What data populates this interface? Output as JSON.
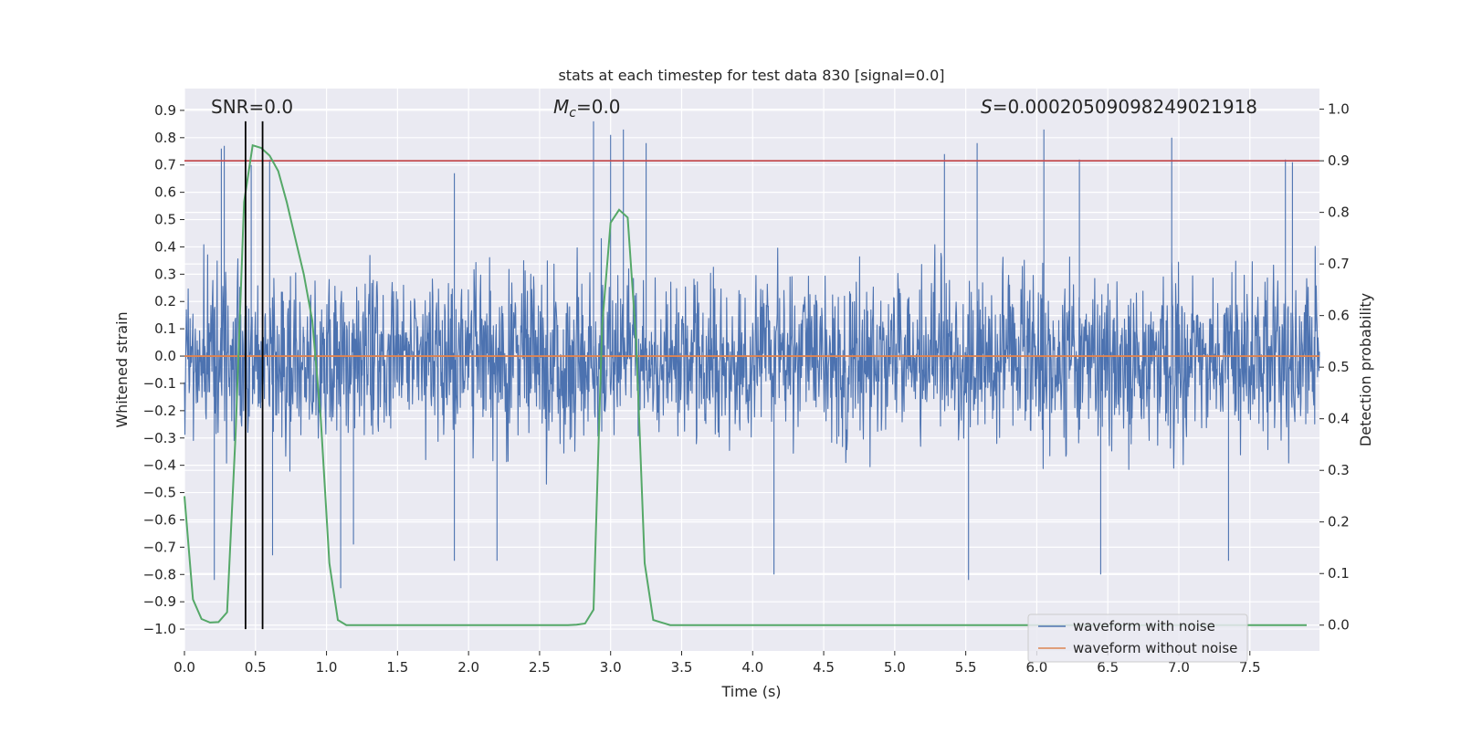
{
  "chart_data": {
    "type": "line",
    "title": "stats at each timestep for test data 830 [signal=0.0]",
    "xlabel": "Time (s)",
    "ylabel_left": "Whitened strain",
    "ylabel_right": "Detection probability",
    "xlim": [
      0.0,
      7.99
    ],
    "ylim_left": [
      -1.08,
      0.98
    ],
    "ylim_right": [
      -0.05,
      1.04
    ],
    "x_ticks": [
      0.0,
      0.5,
      1.0,
      1.5,
      2.0,
      2.5,
      3.0,
      3.5,
      4.0,
      4.5,
      5.0,
      5.5,
      6.0,
      6.5,
      7.0,
      7.5
    ],
    "x_tick_labels": [
      "0.0",
      "0.5",
      "1.0",
      "1.5",
      "2.0",
      "2.5",
      "3.0",
      "3.5",
      "4.0",
      "4.5",
      "5.0",
      "5.5",
      "6.0",
      "6.5",
      "7.0",
      "7.5"
    ],
    "y_left_ticks": [
      0.9,
      0.8,
      0.7,
      0.6,
      0.5,
      0.4,
      0.3,
      0.2,
      0.1,
      0.0,
      -0.1,
      -0.2,
      -0.3,
      -0.4,
      -0.5,
      -0.6,
      -0.7,
      -0.8,
      -0.9,
      -1.0
    ],
    "y_left_tick_labels": [
      "0.9",
      "0.8",
      "0.7",
      "0.6",
      "0.5",
      "0.4",
      "0.3",
      "0.2",
      "0.1",
      "0.0",
      "−0.1",
      "−0.2",
      "−0.3",
      "−0.4",
      "−0.5",
      "−0.6",
      "−0.7",
      "−0.8",
      "−0.9",
      "−1.0"
    ],
    "y_right_ticks": [
      1.0,
      0.9,
      0.8,
      0.7,
      0.6,
      0.5,
      0.4,
      0.3,
      0.2,
      0.1,
      0.0
    ],
    "y_right_tick_labels": [
      "1.0",
      "0.9",
      "0.8",
      "0.7",
      "0.6",
      "0.5",
      "0.4",
      "0.3",
      "0.2",
      "0.1",
      "0.0"
    ],
    "grid": true,
    "legend_position": "bottom-right",
    "annotations": {
      "snr": "SNR=0.0",
      "mc_symbol": "M",
      "mc_sub": "c",
      "mc_value": "=0.0",
      "s_symbol": "S",
      "s_value": "=0.0002050909824902191​8"
    },
    "series": [
      {
        "name": "waveform with noise",
        "axis": "left",
        "color": "#4c72b0",
        "description_fill": "dense noise between about -0.5 and 0.5 with spikes to about 0.85 and -0.85",
        "noise_amplitude": 0.28,
        "seed": 830,
        "spikes": [
          {
            "x": 0.26,
            "y": 0.76
          },
          {
            "x": 0.28,
            "y": 0.77
          },
          {
            "x": 0.21,
            "y": -0.82
          },
          {
            "x": 0.47,
            "y": 0.7
          },
          {
            "x": 0.6,
            "y": 0.72
          },
          {
            "x": 0.62,
            "y": -0.73
          },
          {
            "x": 1.1,
            "y": -0.85
          },
          {
            "x": 1.19,
            "y": -0.69
          },
          {
            "x": 1.9,
            "y": 0.67
          },
          {
            "x": 1.9,
            "y": -0.75
          },
          {
            "x": 2.2,
            "y": -0.75
          },
          {
            "x": 2.88,
            "y": 0.86
          },
          {
            "x": 3.0,
            "y": 0.81
          },
          {
            "x": 3.09,
            "y": 0.83
          },
          {
            "x": 3.25,
            "y": 0.78
          },
          {
            "x": 4.15,
            "y": -0.8
          },
          {
            "x": 5.35,
            "y": 0.74
          },
          {
            "x": 5.52,
            "y": -0.82
          },
          {
            "x": 5.58,
            "y": 0.78
          },
          {
            "x": 6.05,
            "y": 0.83
          },
          {
            "x": 6.3,
            "y": 0.72
          },
          {
            "x": 6.45,
            "y": -0.8
          },
          {
            "x": 6.95,
            "y": 0.8
          },
          {
            "x": 7.35,
            "y": -0.75
          },
          {
            "x": 7.75,
            "y": 0.72
          },
          {
            "x": 7.8,
            "y": 0.71
          }
        ]
      },
      {
        "name": "waveform without noise",
        "axis": "left",
        "color": "#dd8452",
        "x": [
          0.0,
          7.99
        ],
        "y": [
          0.0,
          0.0
        ]
      },
      {
        "name": "detection probability",
        "axis": "right",
        "color": "#55a868",
        "x": [
          0.0,
          0.06,
          0.12,
          0.18,
          0.24,
          0.3,
          0.36,
          0.42,
          0.48,
          0.54,
          0.6,
          0.66,
          0.72,
          0.78,
          0.84,
          0.9,
          0.96,
          1.02,
          1.08,
          1.14,
          1.2,
          2.7,
          2.76,
          2.82,
          2.88,
          2.94,
          3.0,
          3.06,
          3.12,
          3.18,
          3.24,
          3.3,
          3.36,
          3.42,
          7.9
        ],
        "y": [
          0.25,
          0.05,
          0.012,
          0.005,
          0.006,
          0.025,
          0.37,
          0.82,
          0.93,
          0.925,
          0.91,
          0.88,
          0.82,
          0.75,
          0.68,
          0.59,
          0.4,
          0.12,
          0.01,
          0.0,
          0.0,
          0.0,
          0.001,
          0.003,
          0.03,
          0.58,
          0.78,
          0.805,
          0.79,
          0.55,
          0.12,
          0.01,
          0.005,
          0.0,
          0.0
        ]
      },
      {
        "name": "threshold",
        "axis": "right",
        "color": "#c44e52",
        "x": [
          0.0,
          7.99
        ],
        "y": [
          0.9,
          0.9
        ]
      }
    ],
    "vlines": [
      {
        "x": 0.43,
        "y_from": -1.0,
        "y_to": 0.86,
        "color": "#000000"
      },
      {
        "x": 0.55,
        "y_from": -1.0,
        "y_to": 0.86,
        "color": "#000000"
      }
    ],
    "legend": [
      {
        "label": "waveform with noise",
        "color": "#4c72b0"
      },
      {
        "label": "waveform without noise",
        "color": "#dd8452"
      }
    ],
    "colors": {
      "plot_bg": "#eaeaf2",
      "grid": "#ffffff",
      "text": "#262626",
      "legend_bg": "#eaeaf2",
      "legend_border": "#cccccc"
    }
  }
}
